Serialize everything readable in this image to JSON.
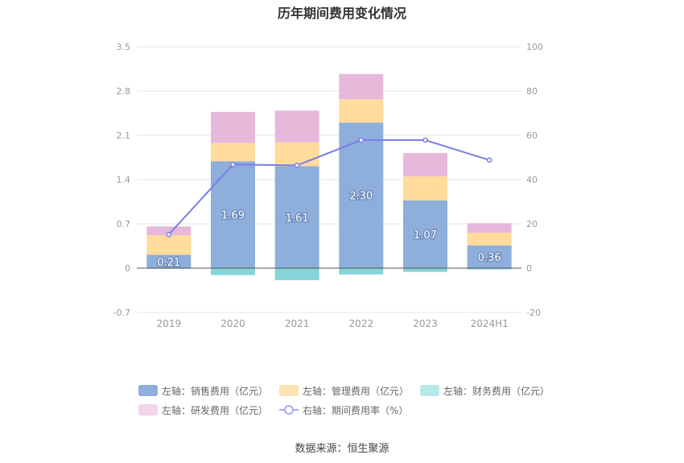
{
  "chart_data": {
    "type": "bar",
    "title": "历年期间费用变化情况",
    "categories": [
      "2019",
      "2020",
      "2021",
      "2022",
      "2023",
      "2024H1"
    ],
    "left_axis": {
      "ylim": [
        -0.7,
        3.5
      ],
      "ticks": [
        "3.5",
        "2.8",
        "2.1",
        "1.4",
        "0.7",
        "0",
        "-0.7"
      ],
      "tick_values": [
        3.5,
        2.8,
        2.1,
        1.4,
        0.7,
        0,
        -0.7
      ]
    },
    "right_axis": {
      "ylim": [
        -20,
        100
      ],
      "ticks": [
        "100",
        "80",
        "60",
        "40",
        "20",
        "0",
        "-20"
      ],
      "tick_values": [
        100,
        80,
        60,
        40,
        20,
        0,
        -20
      ]
    },
    "series": [
      {
        "name": "左轴：销售费用（亿元）",
        "type": "bar",
        "axis": "left",
        "color": "#8eaedb",
        "values": [
          0.21,
          1.69,
          1.61,
          2.3,
          1.07,
          0.36
        ],
        "labels": [
          "0.21",
          "1.69",
          "1.61",
          "2.30",
          "1.07",
          "0.36"
        ]
      },
      {
        "name": "左轴：管理费用（亿元）",
        "type": "bar",
        "axis": "left",
        "color": "#ffdb9c",
        "values": [
          0.31,
          0.29,
          0.38,
          0.37,
          0.38,
          0.2
        ]
      },
      {
        "name": "左轴：财务费用（亿元）",
        "type": "bar",
        "axis": "left",
        "color": "#86d4d8",
        "values": [
          -0.01,
          -0.11,
          -0.19,
          -0.1,
          -0.06,
          -0.02
        ]
      },
      {
        "name": "左轴：研发费用（亿元）",
        "type": "bar",
        "axis": "left",
        "color": "#e6b9db",
        "values": [
          0.14,
          0.49,
          0.5,
          0.4,
          0.37,
          0.15
        ]
      },
      {
        "name": "右轴：期间费用率（%）",
        "type": "line",
        "axis": "right",
        "color": "#7a7fe8",
        "values": [
          15.2,
          46.8,
          46.4,
          57.8,
          57.8,
          48.8
        ]
      }
    ],
    "grid": true,
    "legend_position": "bottom"
  },
  "source_text": "数据来源：恒生聚源",
  "legend_swatch_colors": {
    "sales": "#8eaedb",
    "admin": "#ffe2b3",
    "finance": "#b9e8ea",
    "rd": "#f2d5ec",
    "rate": "#a7aaf0"
  }
}
